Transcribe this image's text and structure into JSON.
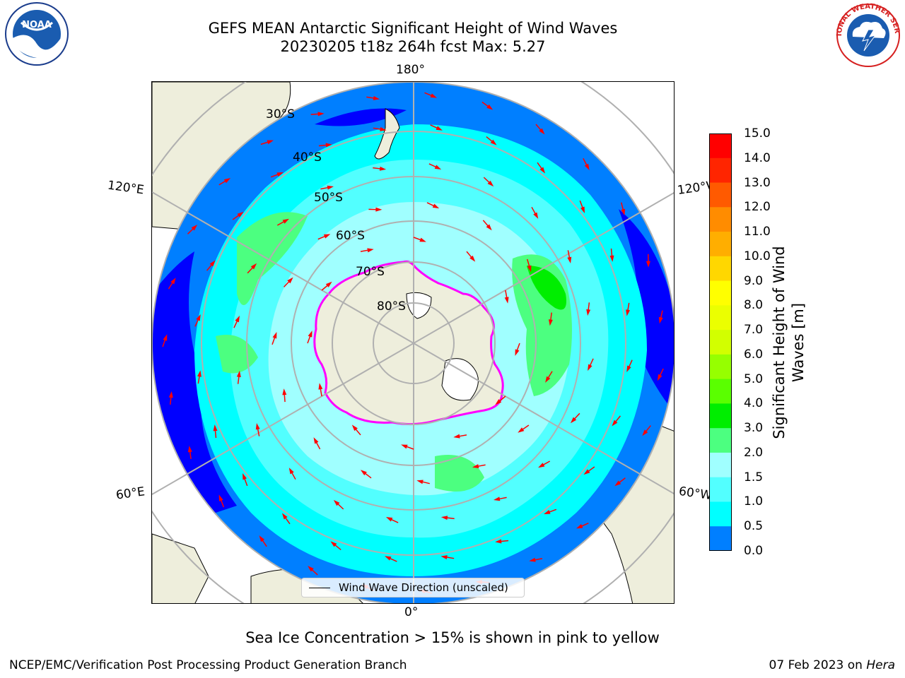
{
  "title": {
    "line1": "GEFS MEAN Antarctic Significant Height of Wind Waves",
    "line2": "20230205 t18z 264h fcst   Max: 5.27"
  },
  "logos": {
    "left": "noaa-logo",
    "left_text": "NOAA",
    "right": "nws-logo",
    "right_text": "NATIONAL WEATHER SERVICE"
  },
  "map": {
    "projection": "south-polar-stereographic",
    "longitude_labels": {
      "top": "180°",
      "bottom": "0°",
      "left_upper": "120°E",
      "left_lower": "60°E",
      "right_upper": "120°W",
      "right_lower": "60°W"
    },
    "latitude_labels": [
      "30°S",
      "40°S",
      "50°S",
      "60°S",
      "70°S",
      "80°S"
    ],
    "land_color": "#eeeedc",
    "legend": "Wind Wave Direction (unscaled)",
    "arrow_color": "#ff0000"
  },
  "colorbar": {
    "label": "Significant Height of Wind Waves [m]",
    "ticks": [
      "15.0",
      "14.0",
      "13.0",
      "12.0",
      "11.0",
      "10.0",
      "9.0",
      "8.0",
      "7.0",
      "6.0",
      "5.0",
      "4.0",
      "3.0",
      "2.0",
      "1.5",
      "1.0",
      "0.5",
      "0.0"
    ],
    "colors": [
      "#ff0000",
      "#ff2500",
      "#ff5a00",
      "#ff8c00",
      "#ffae00",
      "#ffd700",
      "#ffff00",
      "#ebff00",
      "#d2ff00",
      "#96ff00",
      "#5aff00",
      "#00ee00",
      "#4cff80",
      "#a0ffff",
      "#52ffff",
      "#00ffff",
      "#007fff",
      "#0000ff"
    ]
  },
  "note": "Sea Ice Concentration > 15% is shown in pink to yellow",
  "footer": {
    "left": "NCEP/EMC/Verification Post Processing Product Generation Branch",
    "date": "07 Feb 2023 on ",
    "host": "Hera"
  }
}
